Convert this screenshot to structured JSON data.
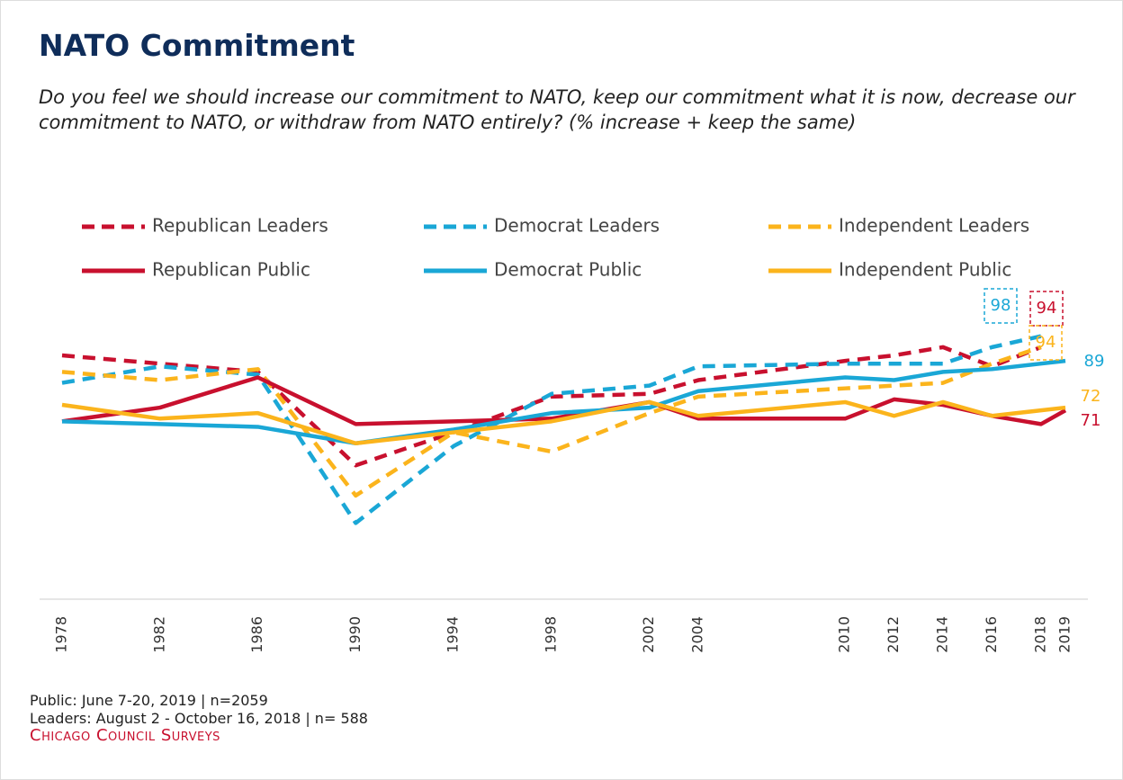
{
  "chart_data": {
    "type": "line",
    "title": "NATO Commitment",
    "subtitle": "Do you feel we should increase our commitment to NATO, keep our commitment what it is now, decrease our commitment to NATO, or withdraw from NATO entirely? (% increase + keep the same)",
    "x": [
      1978,
      1982,
      1986,
      1990,
      1994,
      1998,
      2002,
      2004,
      2010,
      2012,
      2014,
      2016,
      2018,
      2019
    ],
    "xlim": [
      1978,
      2019
    ],
    "xticks": [
      1978,
      1982,
      1986,
      1990,
      1994,
      1998,
      2002,
      2004,
      2010,
      2012,
      2014,
      2016,
      2018,
      2019
    ],
    "ylim": [
      0,
      110
    ],
    "series": [
      {
        "name": "Republican Leaders",
        "color": "#c8102e",
        "dashed": true,
        "values": [
          91,
          88,
          85,
          51,
          63,
          76,
          77,
          82,
          89,
          91,
          94,
          87,
          94,
          null
        ]
      },
      {
        "name": "Democrat Leaders",
        "color": "#1aa7d6",
        "dashed": true,
        "values": [
          81,
          87,
          84,
          30,
          58,
          77,
          80,
          87,
          88,
          88,
          88,
          94,
          98,
          null
        ]
      },
      {
        "name": "Independent Leaders",
        "color": "#fbb41c",
        "dashed": true,
        "values": [
          85,
          82,
          86,
          40,
          63,
          56,
          70,
          76,
          79,
          80,
          81,
          88,
          94,
          null
        ]
      },
      {
        "name": "Republican Public",
        "color": "#c8102e",
        "dashed": false,
        "values": [
          67,
          72,
          83,
          66,
          67,
          68,
          74,
          68,
          68,
          75,
          73,
          69,
          66,
          71
        ]
      },
      {
        "name": "Democrat Public",
        "color": "#1aa7d6",
        "dashed": false,
        "values": [
          67,
          66,
          65,
          59,
          64,
          70,
          72,
          78,
          83,
          82,
          85,
          86,
          88,
          89
        ]
      },
      {
        "name": "Independent Public",
        "color": "#fbb41c",
        "dashed": false,
        "values": [
          73,
          68,
          70,
          59,
          63,
          67,
          74,
          69,
          74,
          69,
          74,
          69,
          71,
          72
        ]
      }
    ],
    "footnotes": [
      "Public: June 7-20, 2019 | n=2059",
      "Leaders: August 2 - October 16, 2018 | n= 588"
    ],
    "source": "Chicago Council Surveys"
  }
}
